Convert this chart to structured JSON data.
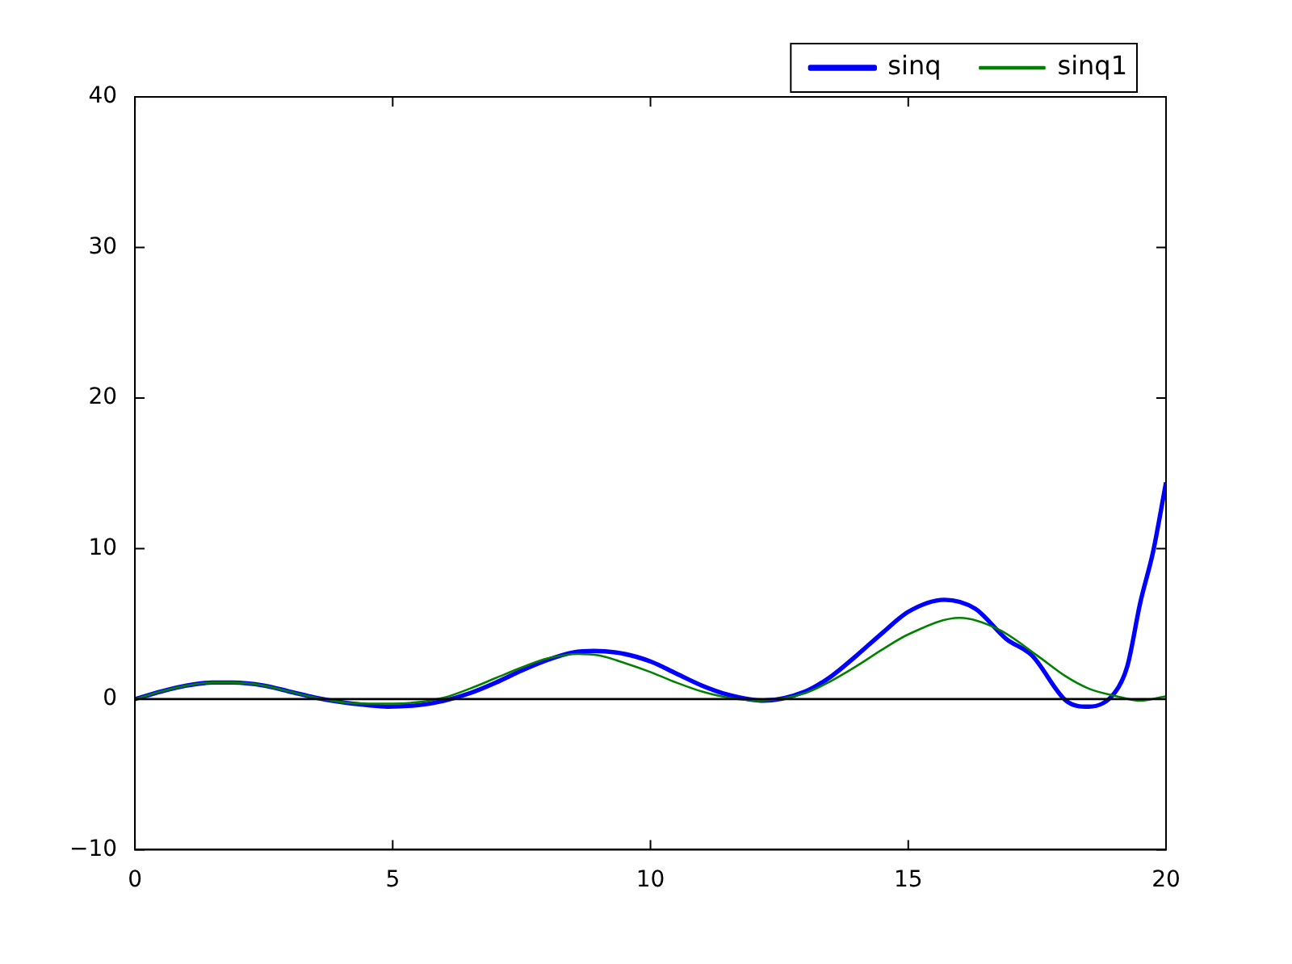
{
  "chart_data": {
    "type": "line",
    "legend": "top right",
    "grid": false,
    "xlim": [
      0,
      20
    ],
    "xticks": [
      0,
      5,
      10,
      15,
      20
    ],
    "ylim": [
      -10,
      40
    ],
    "yticks": [
      -10,
      0,
      10,
      20,
      30,
      40
    ],
    "ref_lines": [
      {
        "axis": "y",
        "value": 0,
        "color": "#000000"
      }
    ],
    "series": [
      {
        "name": "sinq",
        "color": "#0000ff",
        "x": [
          0,
          0.5,
          1,
          1.5,
          1.9,
          2.5,
          3,
          3.5,
          4,
          4.5,
          4.9,
          5.5,
          6,
          6.5,
          7,
          7.5,
          8,
          8.5,
          8.9,
          9.5,
          10,
          10.5,
          11,
          11.5,
          12.2,
          13,
          13.5,
          14,
          14.5,
          15,
          15.7,
          16.3,
          16.9,
          17.4,
          18.06,
          18.5,
          19,
          19.25,
          19.5,
          19.75,
          20
        ],
        "values": [
          0,
          0.5,
          0.9,
          1.1,
          1.1,
          0.9,
          0.5,
          0.1,
          -0.2,
          -0.4,
          -0.5,
          -0.4,
          -0.1,
          0.4,
          1.1,
          1.9,
          2.6,
          3.1,
          3.2,
          3.0,
          2.5,
          1.7,
          0.9,
          0.3,
          -0.1,
          0.5,
          1.5,
          2.9,
          4.4,
          5.8,
          6.6,
          6.0,
          4.0,
          2.9,
          -0.1,
          -0.5,
          0.4,
          2.2,
          6.4,
          9.8,
          14.4
        ]
      },
      {
        "name": "sinq1",
        "color": "#008000",
        "x": [
          0,
          0.5,
          1,
          1.5,
          1.9,
          2.5,
          3,
          3.5,
          4,
          4.5,
          5,
          5.5,
          6,
          6.5,
          7,
          7.5,
          8,
          8.6,
          9,
          9.5,
          10,
          10.5,
          11,
          11.5,
          12.1,
          13,
          13.5,
          14,
          14.5,
          15,
          16,
          16.77,
          17.5,
          18.06,
          18.5,
          19.03,
          19.5,
          20
        ],
        "values": [
          0,
          0.5,
          0.9,
          1.1,
          1.1,
          0.9,
          0.5,
          0.1,
          -0.2,
          -0.3,
          -0.3,
          -0.2,
          0.1,
          0.7,
          1.4,
          2.1,
          2.7,
          3.0,
          2.9,
          2.4,
          1.8,
          1.1,
          0.5,
          0.1,
          -0.1,
          0.4,
          1.2,
          2.2,
          3.3,
          4.3,
          5.4,
          4.6,
          2.9,
          1.5,
          0.7,
          0.2,
          -0.1,
          0.2
        ]
      }
    ]
  }
}
